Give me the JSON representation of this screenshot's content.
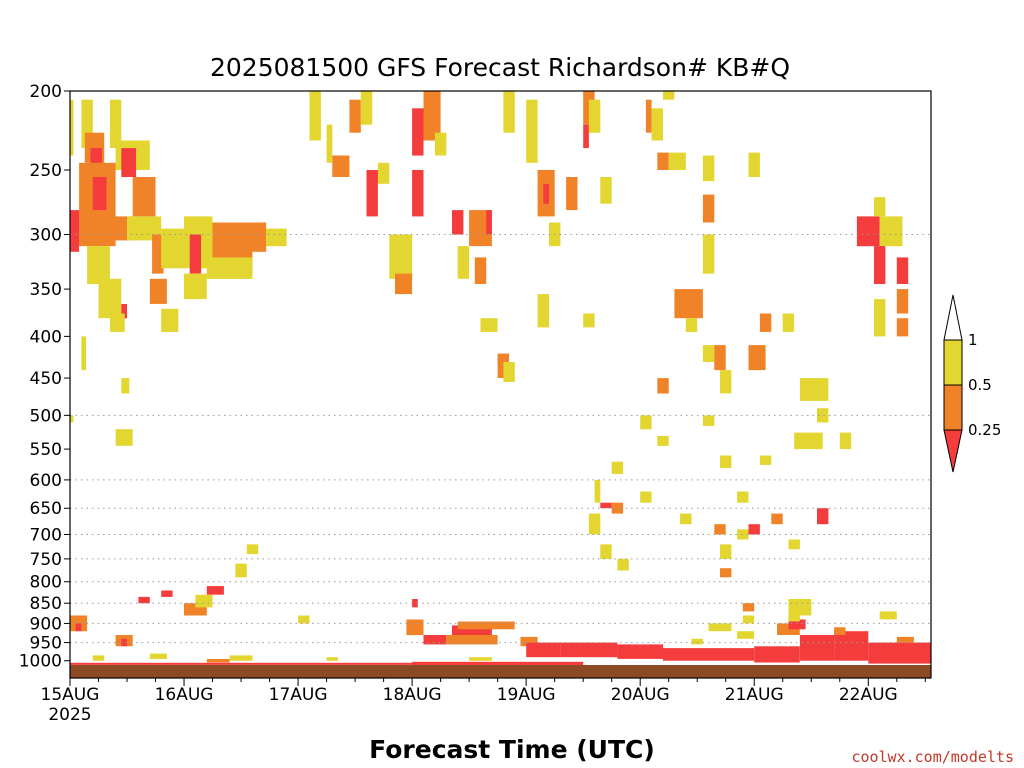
{
  "page": {
    "title": "2025081500 GFS Forecast Richardson# KB#Q",
    "credit": "coolwx.com/modelts"
  },
  "chart_data": {
    "type": "heatmap",
    "title": "2025081500 GFS Forecast Richardson# KB#Q",
    "xlabel": "Forecast Time (UTC)",
    "ylabel": "",
    "x_ticks": [
      "15AUG",
      "16AUG",
      "17AUG",
      "18AUG",
      "19AUG",
      "20AUG",
      "21AUG",
      "22AUG"
    ],
    "x_first_tick_year": "2025",
    "x_range_days": [
      0,
      7.55
    ],
    "y_scale": "log",
    "y_range_hpa": [
      1050,
      200
    ],
    "y_ticks": [
      200,
      250,
      300,
      350,
      400,
      450,
      500,
      550,
      600,
      650,
      700,
      750,
      800,
      850,
      900,
      950,
      1000
    ],
    "gridlines": [
      300,
      500,
      600,
      650,
      700,
      750,
      800,
      850,
      900,
      950
    ],
    "legend": {
      "placement": "right",
      "labels": [
        "1",
        "0.5",
        "0.25"
      ],
      "bins": [
        {
          "range": "0.5-1",
          "color": "#e3d630"
        },
        {
          "range": "0.25-0.5",
          "color": "#f08228"
        },
        {
          "range": "<0.25",
          "color": "#f53c3c"
        }
      ]
    },
    "colors": {
      "yellow": "#e3d630",
      "orange": "#f08228",
      "red": "#f53c3c",
      "ground": "#8b4a23"
    },
    "surface_pressure_hpa": 1012,
    "cells": [
      [
        0.0,
        0.03,
        205,
        240,
        "yellow"
      ],
      [
        0.1,
        0.2,
        205,
        235,
        "yellow"
      ],
      [
        0.35,
        0.45,
        205,
        235,
        "yellow"
      ],
      [
        0.13,
        0.3,
        225,
        245,
        "orange"
      ],
      [
        0.4,
        0.7,
        230,
        250,
        "yellow"
      ],
      [
        0.18,
        0.28,
        235,
        265,
        "red"
      ],
      [
        0.45,
        0.58,
        235,
        255,
        "red"
      ],
      [
        0.08,
        0.4,
        245,
        310,
        "orange"
      ],
      [
        0.0,
        0.08,
        280,
        315,
        "red"
      ],
      [
        0.2,
        0.32,
        255,
        280,
        "red"
      ],
      [
        0.55,
        0.75,
        255,
        285,
        "orange"
      ],
      [
        0.32,
        0.55,
        285,
        305,
        "orange"
      ],
      [
        0.5,
        0.8,
        285,
        305,
        "yellow"
      ],
      [
        0.72,
        0.82,
        300,
        335,
        "orange"
      ],
      [
        0.8,
        1.0,
        295,
        330,
        "yellow"
      ],
      [
        1.0,
        1.25,
        285,
        330,
        "yellow"
      ],
      [
        1.05,
        1.15,
        300,
        335,
        "red"
      ],
      [
        1.25,
        1.6,
        290,
        335,
        "orange"
      ],
      [
        1.2,
        1.6,
        320,
        340,
        "yellow"
      ],
      [
        1.55,
        1.72,
        290,
        315,
        "orange"
      ],
      [
        1.72,
        1.9,
        295,
        310,
        "yellow"
      ],
      [
        0.15,
        0.35,
        310,
        345,
        "yellow"
      ],
      [
        0.25,
        0.45,
        340,
        380,
        "yellow"
      ],
      [
        0.45,
        0.5,
        365,
        380,
        "red"
      ],
      [
        0.35,
        0.48,
        375,
        395,
        "yellow"
      ],
      [
        0.7,
        0.85,
        340,
        365,
        "orange"
      ],
      [
        0.8,
        0.95,
        370,
        395,
        "yellow"
      ],
      [
        1.0,
        1.2,
        335,
        360,
        "yellow"
      ],
      [
        0.1,
        0.14,
        400,
        440,
        "yellow"
      ],
      [
        0.45,
        0.52,
        450,
        470,
        "yellow"
      ],
      [
        0.4,
        0.55,
        520,
        545,
        "yellow"
      ],
      [
        0.0,
        0.03,
        500,
        510,
        "yellow"
      ],
      [
        2.1,
        2.2,
        200,
        230,
        "yellow"
      ],
      [
        2.25,
        2.3,
        220,
        245,
        "yellow"
      ],
      [
        2.3,
        2.45,
        240,
        255,
        "orange"
      ],
      [
        2.45,
        2.55,
        205,
        225,
        "orange"
      ],
      [
        2.55,
        2.65,
        200,
        220,
        "yellow"
      ],
      [
        2.7,
        2.8,
        245,
        260,
        "yellow"
      ],
      [
        2.6,
        2.7,
        250,
        285,
        "red"
      ],
      [
        2.8,
        3.0,
        300,
        340,
        "yellow"
      ],
      [
        2.85,
        3.0,
        335,
        355,
        "orange"
      ],
      [
        3.0,
        3.1,
        210,
        240,
        "red"
      ],
      [
        3.0,
        3.1,
        250,
        285,
        "red"
      ],
      [
        3.1,
        3.25,
        200,
        230,
        "orange"
      ],
      [
        3.2,
        3.3,
        225,
        240,
        "yellow"
      ],
      [
        3.35,
        3.45,
        280,
        300,
        "red"
      ],
      [
        3.5,
        3.7,
        280,
        310,
        "orange"
      ],
      [
        3.65,
        3.7,
        280,
        300,
        "red"
      ],
      [
        3.4,
        3.5,
        310,
        340,
        "yellow"
      ],
      [
        3.55,
        3.65,
        320,
        345,
        "orange"
      ],
      [
        3.6,
        3.75,
        380,
        395,
        "yellow"
      ],
      [
        3.8,
        3.9,
        200,
        225,
        "yellow"
      ],
      [
        4.0,
        4.1,
        205,
        245,
        "yellow"
      ],
      [
        4.1,
        4.25,
        250,
        285,
        "orange"
      ],
      [
        4.15,
        4.2,
        260,
        275,
        "red"
      ],
      [
        4.35,
        4.45,
        255,
        280,
        "orange"
      ],
      [
        4.2,
        4.3,
        290,
        310,
        "yellow"
      ],
      [
        4.5,
        4.6,
        200,
        220,
        "orange"
      ],
      [
        4.5,
        4.55,
        220,
        235,
        "red"
      ],
      [
        4.55,
        4.65,
        205,
        225,
        "yellow"
      ],
      [
        4.65,
        4.75,
        255,
        275,
        "yellow"
      ],
      [
        5.05,
        5.1,
        205,
        225,
        "orange"
      ],
      [
        5.1,
        5.2,
        210,
        230,
        "yellow"
      ],
      [
        5.2,
        5.3,
        200,
        205,
        "yellow"
      ],
      [
        5.15,
        5.25,
        238,
        250,
        "orange"
      ],
      [
        5.25,
        5.4,
        238,
        250,
        "yellow"
      ],
      [
        5.55,
        5.65,
        240,
        258,
        "yellow"
      ],
      [
        5.55,
        5.65,
        268,
        290,
        "orange"
      ],
      [
        5.55,
        5.65,
        300,
        335,
        "yellow"
      ],
      [
        5.95,
        6.05,
        238,
        255,
        "yellow"
      ],
      [
        5.3,
        5.55,
        350,
        380,
        "orange"
      ],
      [
        5.4,
        5.5,
        380,
        395,
        "yellow"
      ],
      [
        5.55,
        5.65,
        410,
        430,
        "yellow"
      ],
      [
        5.65,
        5.75,
        410,
        440,
        "orange"
      ],
      [
        5.7,
        5.8,
        440,
        470,
        "yellow"
      ],
      [
        5.95,
        6.1,
        410,
        440,
        "orange"
      ],
      [
        6.05,
        6.15,
        375,
        395,
        "orange"
      ],
      [
        6.25,
        6.35,
        375,
        395,
        "yellow"
      ],
      [
        6.4,
        6.65,
        450,
        480,
        "yellow"
      ],
      [
        6.55,
        6.65,
        490,
        510,
        "yellow"
      ],
      [
        6.35,
        6.6,
        525,
        550,
        "yellow"
      ],
      [
        6.75,
        6.85,
        525,
        550,
        "yellow"
      ],
      [
        6.9,
        7.1,
        285,
        310,
        "red"
      ],
      [
        7.1,
        7.3,
        285,
        310,
        "yellow"
      ],
      [
        7.05,
        7.15,
        310,
        345,
        "red"
      ],
      [
        7.25,
        7.35,
        320,
        345,
        "red"
      ],
      [
        7.25,
        7.35,
        350,
        375,
        "orange"
      ],
      [
        7.25,
        7.35,
        380,
        400,
        "orange"
      ],
      [
        7.05,
        7.15,
        360,
        385,
        "yellow"
      ],
      [
        7.05,
        7.15,
        270,
        285,
        "yellow"
      ],
      [
        7.05,
        7.15,
        380,
        400,
        "yellow"
      ],
      [
        5.15,
        5.25,
        450,
        470,
        "orange"
      ],
      [
        5.0,
        5.1,
        500,
        520,
        "yellow"
      ],
      [
        5.15,
        5.25,
        530,
        545,
        "yellow"
      ],
      [
        5.55,
        5.65,
        500,
        515,
        "yellow"
      ],
      [
        6.05,
        6.15,
        560,
        575,
        "yellow"
      ],
      [
        5.7,
        5.8,
        560,
        580,
        "yellow"
      ],
      [
        4.1,
        4.2,
        355,
        390,
        "yellow"
      ],
      [
        4.5,
        4.6,
        375,
        390,
        "yellow"
      ],
      [
        3.75,
        3.85,
        420,
        450,
        "orange"
      ],
      [
        3.8,
        3.9,
        430,
        455,
        "yellow"
      ],
      [
        0.8,
        0.9,
        820,
        835,
        "red"
      ],
      [
        0.6,
        0.7,
        835,
        850,
        "red"
      ],
      [
        1.0,
        1.2,
        850,
        880,
        "orange"
      ],
      [
        1.2,
        1.35,
        810,
        830,
        "red"
      ],
      [
        1.1,
        1.25,
        830,
        860,
        "yellow"
      ],
      [
        1.45,
        1.55,
        760,
        790,
        "yellow"
      ],
      [
        1.55,
        1.65,
        720,
        740,
        "yellow"
      ],
      [
        0.0,
        0.15,
        880,
        920,
        "orange"
      ],
      [
        0.05,
        0.1,
        900,
        920,
        "red"
      ],
      [
        0.4,
        0.55,
        930,
        960,
        "orange"
      ],
      [
        0.45,
        0.5,
        940,
        960,
        "red"
      ],
      [
        2.0,
        2.1,
        880,
        900,
        "yellow"
      ],
      [
        3.0,
        3.05,
        840,
        860,
        "red"
      ],
      [
        2.95,
        3.1,
        890,
        930,
        "orange"
      ],
      [
        3.1,
        3.3,
        930,
        955,
        "red"
      ],
      [
        3.35,
        3.7,
        905,
        935,
        "red"
      ],
      [
        3.4,
        3.9,
        895,
        915,
        "orange"
      ],
      [
        3.3,
        3.75,
        930,
        955,
        "orange"
      ],
      [
        3.95,
        4.1,
        935,
        960,
        "orange"
      ],
      [
        4.0,
        4.3,
        950,
        990,
        "red"
      ],
      [
        4.3,
        4.8,
        950,
        990,
        "red"
      ],
      [
        4.8,
        5.2,
        955,
        995,
        "red"
      ],
      [
        5.2,
        6.0,
        965,
        1000,
        "red"
      ],
      [
        6.0,
        6.4,
        960,
        1005,
        "red"
      ],
      [
        6.4,
        6.7,
        930,
        1000,
        "red"
      ],
      [
        6.7,
        7.0,
        920,
        1000,
        "red"
      ],
      [
        7.0,
        7.55,
        950,
        1008,
        "red"
      ],
      [
        6.2,
        6.4,
        900,
        930,
        "orange"
      ],
      [
        6.3,
        6.45,
        890,
        915,
        "red"
      ],
      [
        6.3,
        6.4,
        860,
        895,
        "yellow"
      ],
      [
        6.7,
        6.8,
        910,
        930,
        "orange"
      ],
      [
        7.1,
        7.25,
        870,
        890,
        "yellow"
      ],
      [
        7.25,
        7.4,
        935,
        950,
        "orange"
      ],
      [
        5.6,
        5.8,
        900,
        920,
        "yellow"
      ],
      [
        5.85,
        6.0,
        920,
        940,
        "yellow"
      ],
      [
        5.45,
        5.55,
        940,
        955,
        "yellow"
      ],
      [
        4.6,
        4.65,
        600,
        640,
        "yellow"
      ],
      [
        4.65,
        4.75,
        640,
        650,
        "red"
      ],
      [
        4.75,
        4.85,
        640,
        660,
        "orange"
      ],
      [
        4.55,
        4.65,
        660,
        700,
        "yellow"
      ],
      [
        4.65,
        4.75,
        720,
        750,
        "yellow"
      ],
      [
        4.8,
        4.9,
        750,
        775,
        "yellow"
      ],
      [
        4.75,
        4.85,
        570,
        590,
        "yellow"
      ],
      [
        5.35,
        5.45,
        660,
        680,
        "yellow"
      ],
      [
        5.65,
        5.75,
        680,
        700,
        "orange"
      ],
      [
        5.7,
        5.8,
        720,
        750,
        "yellow"
      ],
      [
        5.95,
        6.05,
        680,
        700,
        "red"
      ],
      [
        5.85,
        5.95,
        690,
        710,
        "yellow"
      ],
      [
        6.15,
        6.25,
        660,
        680,
        "orange"
      ],
      [
        6.3,
        6.4,
        710,
        730,
        "yellow"
      ],
      [
        6.55,
        6.65,
        650,
        680,
        "red"
      ],
      [
        5.7,
        5.8,
        770,
        790,
        "orange"
      ],
      [
        5.85,
        5.95,
        620,
        640,
        "yellow"
      ],
      [
        6.3,
        6.5,
        840,
        880,
        "yellow"
      ],
      [
        5.9,
        6.0,
        850,
        870,
        "orange"
      ],
      [
        5.9,
        6.0,
        880,
        900,
        "yellow"
      ],
      [
        5.0,
        5.1,
        620,
        640,
        "yellow"
      ],
      [
        0.0,
        1.6,
        1006,
        1012,
        "red"
      ],
      [
        1.6,
        3.0,
        1006,
        1012,
        "red"
      ],
      [
        3.0,
        4.5,
        1003,
        1012,
        "red"
      ],
      [
        0.2,
        0.3,
        985,
        1000,
        "yellow"
      ],
      [
        1.4,
        1.6,
        985,
        1000,
        "yellow"
      ],
      [
        2.25,
        2.35,
        990,
        1000,
        "yellow"
      ],
      [
        1.2,
        1.4,
        995,
        1005,
        "orange"
      ],
      [
        3.5,
        3.7,
        990,
        1000,
        "yellow"
      ],
      [
        0.7,
        0.85,
        980,
        995,
        "yellow"
      ]
    ]
  }
}
